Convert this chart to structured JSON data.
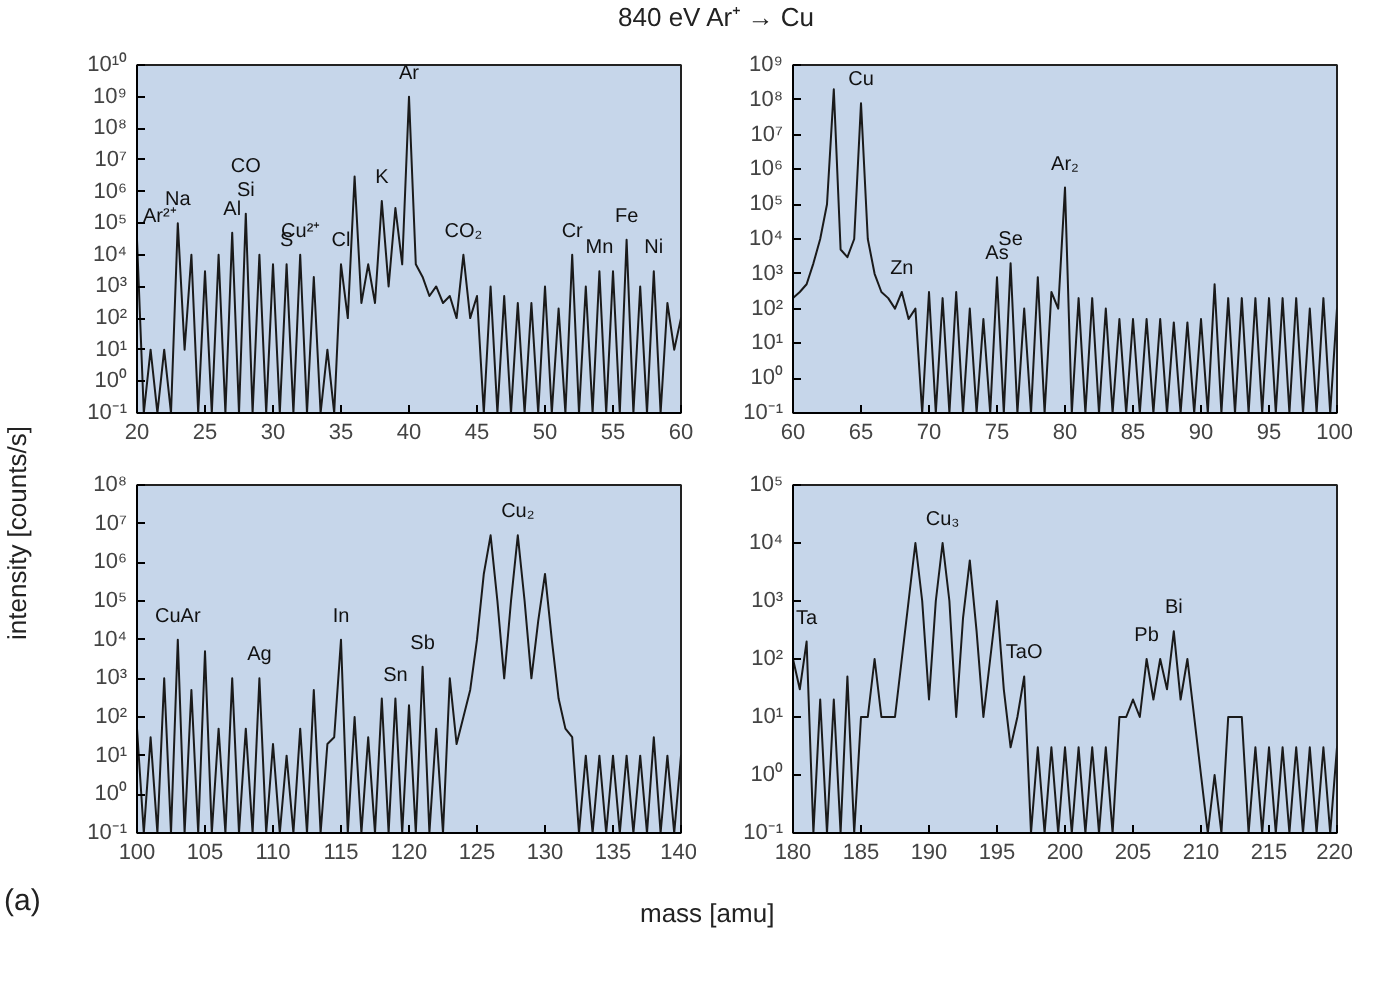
{
  "chart_data": [
    {
      "type": "line",
      "title": "840 eV Ar⁺ → Cu",
      "ylabel": "intensity [counts/s]",
      "color": "#1a1a1a",
      "log": "y",
      "line_style": "solid",
      "xlim": [
        20,
        60
      ],
      "ylim": [
        0.1,
        10000000000.0
      ],
      "xticks": [
        20,
        25,
        30,
        35,
        40,
        45,
        50,
        55,
        60
      ],
      "yticks": [
        {
          "value": 0.1,
          "label": "10⁻¹"
        },
        {
          "value": 1,
          "label": "10⁰"
        },
        {
          "value": 10,
          "label": "10¹"
        },
        {
          "value": 100,
          "label": "10²"
        },
        {
          "value": 1000,
          "label": "10³"
        },
        {
          "value": 10000,
          "label": "10⁴"
        },
        {
          "value": 100000,
          "label": "10⁵"
        },
        {
          "value": 1000000,
          "label": "10⁶"
        },
        {
          "value": 10000000.0,
          "label": "10⁷"
        },
        {
          "value": 100000000.0,
          "label": "10⁸"
        },
        {
          "value": 1000000000.0,
          "label": "10⁹"
        },
        {
          "value": 10000000000.0,
          "label": "10¹⁰"
        }
      ],
      "x": [
        20,
        20.5,
        21,
        21.5,
        22,
        22.5,
        23,
        23.5,
        24,
        24.5,
        25,
        25.5,
        26,
        26.5,
        27,
        27.5,
        28,
        28.5,
        29,
        29.5,
        30,
        30.5,
        31,
        31.5,
        32,
        32.5,
        33,
        33.5,
        34,
        34.5,
        35,
        35.5,
        36,
        36.5,
        37,
        37.5,
        38,
        38.5,
        39,
        39.5,
        40,
        40.5,
        41,
        41.5,
        42,
        42.5,
        43,
        43.5,
        44,
        44.5,
        45,
        45.5,
        46,
        46.5,
        47,
        47.5,
        48,
        48.5,
        49,
        49.5,
        50,
        50.5,
        51,
        51.5,
        52,
        52.5,
        53,
        53.5,
        54,
        54.5,
        55,
        55.5,
        56,
        56.5,
        57,
        57.5,
        58,
        58.5,
        59,
        59.5,
        60
      ],
      "values": [
        30000.0,
        0.1,
        10,
        0.1,
        10,
        0.1,
        100000.0,
        10,
        10000.0,
        0.1,
        3000.0,
        0.1,
        10000.0,
        0.1,
        50000.0,
        0.1,
        200000.0,
        0.1,
        10000.0,
        0.1,
        5000.0,
        0.1,
        5000.0,
        0.1,
        10000.0,
        0.1,
        2000.0,
        0.1,
        10,
        0.1,
        5000.0,
        100,
        3000000.0,
        300,
        5000.0,
        300,
        500000.0,
        1000.0,
        300000.0,
        5000.0,
        1000000000.0,
        5000.0,
        2000.0,
        500,
        1000.0,
        300,
        500,
        100,
        10000.0,
        100,
        500,
        0.1,
        1000.0,
        0.1,
        500,
        0.1,
        300,
        0.1,
        300,
        0.1,
        1000.0,
        0.1,
        200,
        0.1,
        10000.0,
        0.1,
        1000.0,
        0.1,
        3000.0,
        0.1,
        3000.0,
        0.1,
        30000.0,
        0.1,
        1000.0,
        0.1,
        3000.0,
        0.1,
        300,
        10,
        100
      ],
      "annotations": [
        {
          "text": "Ar²⁺",
          "x": 20,
          "y": 30000.0
        },
        {
          "text": "Na",
          "x": 23,
          "y": 100000.0
        },
        {
          "text": "Si",
          "x": 28,
          "y": 200000.0
        },
        {
          "text": "CO",
          "x": 28,
          "y": 200000.0
        },
        {
          "text": "Al",
          "x": 27,
          "y": 50000.0
        },
        {
          "text": "Cu²⁺",
          "x": 32,
          "y": 10000.0
        },
        {
          "text": "S",
          "x": 31,
          "y": 5000.0
        },
        {
          "text": "Cl",
          "x": 35,
          "y": 5000.0
        },
        {
          "text": "K",
          "x": 38,
          "y": 500000.0
        },
        {
          "text": "Ar",
          "x": 40,
          "y": 1000000000.0
        },
        {
          "text": "CO₂",
          "x": 44,
          "y": 10000.0
        },
        {
          "text": "Cr",
          "x": 52,
          "y": 10000.0
        },
        {
          "text": "Mn",
          "x": 54,
          "y": 3000.0
        },
        {
          "text": "Fe",
          "x": 56,
          "y": 30000.0
        },
        {
          "text": "Ni",
          "x": 58,
          "y": 3000.0
        }
      ]
    },
    {
      "type": "line",
      "color": "#1a1a1a",
      "log": "y",
      "line_style": "solid",
      "xlim": [
        60,
        100
      ],
      "ylim": [
        0.1,
        1000000000.0
      ],
      "xticks": [
        60,
        65,
        70,
        75,
        80,
        85,
        90,
        95,
        100
      ],
      "yticks": [
        {
          "value": 0.1,
          "label": "10⁻¹"
        },
        {
          "value": 1,
          "label": "10⁰"
        },
        {
          "value": 10,
          "label": "10¹"
        },
        {
          "value": 100,
          "label": "10²"
        },
        {
          "value": 1000,
          "label": "10³"
        },
        {
          "value": 10000,
          "label": "10⁴"
        },
        {
          "value": 100000,
          "label": "10⁵"
        },
        {
          "value": 1000000,
          "label": "10⁶"
        },
        {
          "value": 10000000.0,
          "label": "10⁷"
        },
        {
          "value": 100000000.0,
          "label": "10⁸"
        },
        {
          "value": 1000000000.0,
          "label": "10⁹"
        }
      ],
      "x": [
        60,
        60.5,
        61,
        61.5,
        62,
        62.5,
        63,
        63.5,
        64,
        64.5,
        65,
        65.5,
        66,
        66.5,
        67,
        67.5,
        68,
        68.5,
        69,
        69.5,
        70,
        70.5,
        71,
        71.5,
        72,
        72.5,
        73,
        73.5,
        74,
        74.5,
        75,
        75.5,
        76,
        76.5,
        77,
        77.5,
        78,
        78.5,
        79,
        79.5,
        80,
        80.5,
        81,
        81.5,
        82,
        82.5,
        83,
        83.5,
        84,
        84.5,
        85,
        85.5,
        86,
        86.5,
        87,
        87.5,
        88,
        88.5,
        89,
        89.5,
        90,
        90.5,
        91,
        91.5,
        92,
        92.5,
        93,
        93.5,
        94,
        94.5,
        95,
        95.5,
        96,
        96.5,
        97,
        97.5,
        98,
        98.5,
        99,
        99.5,
        100
      ],
      "values": [
        200,
        300,
        500,
        2000.0,
        10000.0,
        100000.0,
        200000000.0,
        5000.0,
        3000.0,
        10000.0,
        80000000.0,
        10000.0,
        1000.0,
        300,
        200,
        100,
        300,
        50,
        100,
        0.1,
        300,
        0.1,
        200,
        0.1,
        300,
        0.1,
        100,
        0.1,
        50,
        0.1,
        800,
        0.1,
        2000.0,
        0.1,
        100,
        0.1,
        800,
        0.1,
        300,
        100,
        300000.0,
        0.1,
        200,
        0.1,
        200,
        0.1,
        100,
        0.1,
        50,
        0.1,
        50,
        0.1,
        50,
        0.1,
        50,
        0.1,
        40,
        0.1,
        40,
        0.1,
        50,
        0.1,
        500,
        0.1,
        200,
        0.1,
        200,
        0.1,
        200,
        0.1,
        200,
        0.1,
        200,
        0.1,
        200,
        0.1,
        100,
        0.1,
        200,
        0.1,
        100
      ],
      "annotations": [
        {
          "text": "Cu",
          "x": 65,
          "y": 80000000.0
        },
        {
          "text": "Zn",
          "x": 68,
          "y": 300
        },
        {
          "text": "As",
          "x": 75,
          "y": 800
        },
        {
          "text": "Se",
          "x": 76,
          "y": 2000.0
        },
        {
          "text": "Ar₂",
          "x": 80,
          "y": 300000.0
        }
      ]
    },
    {
      "type": "line",
      "xlabel": "mass [amu]",
      "color": "#1a1a1a",
      "log": "y",
      "line_style": "solid",
      "xlim": [
        100,
        140
      ],
      "ylim": [
        0.1,
        100000000.0
      ],
      "xticks": [
        100,
        105,
        110,
        115,
        120,
        125,
        130,
        135,
        140
      ],
      "yticks": [
        {
          "value": 0.1,
          "label": "10⁻¹"
        },
        {
          "value": 1,
          "label": "10⁰"
        },
        {
          "value": 10,
          "label": "10¹"
        },
        {
          "value": 100,
          "label": "10²"
        },
        {
          "value": 1000,
          "label": "10³"
        },
        {
          "value": 10000,
          "label": "10⁴"
        },
        {
          "value": 100000,
          "label": "10⁵"
        },
        {
          "value": 1000000,
          "label": "10⁶"
        },
        {
          "value": 10000000.0,
          "label": "10⁷"
        },
        {
          "value": 100000000.0,
          "label": "10⁸"
        }
      ],
      "x": [
        100,
        100.5,
        101,
        101.5,
        102,
        102.5,
        103,
        103.5,
        104,
        104.5,
        105,
        105.5,
        106,
        106.5,
        107,
        107.5,
        108,
        108.5,
        109,
        109.5,
        110,
        110.5,
        111,
        111.5,
        112,
        112.5,
        113,
        113.5,
        114,
        114.5,
        115,
        115.5,
        116,
        116.5,
        117,
        117.5,
        118,
        118.5,
        119,
        119.5,
        120,
        120.5,
        121,
        121.5,
        122,
        122.5,
        123,
        123.5,
        124,
        124.5,
        125,
        125.5,
        126,
        126.5,
        127,
        127.5,
        128,
        128.5,
        129,
        129.5,
        130,
        130.5,
        131,
        131.5,
        132,
        132.5,
        133,
        133.5,
        134,
        134.5,
        135,
        135.5,
        136,
        136.5,
        137,
        137.5,
        138,
        138.5,
        139,
        139.5,
        140
      ],
      "values": [
        50,
        0.1,
        30,
        0.1,
        1000.0,
        0.1,
        10000.0,
        0.1,
        500,
        0.1,
        5000.0,
        0.1,
        50,
        0.1,
        1000.0,
        0.1,
        50,
        0.1,
        1000.0,
        0.1,
        20,
        0.1,
        10,
        0.1,
        50,
        0.1,
        500,
        0.1,
        20,
        30,
        10000.0,
        0.1,
        100,
        0.1,
        30,
        0.1,
        300,
        0.1,
        300,
        0.1,
        200,
        0.1,
        2000.0,
        0.1,
        50,
        0.1,
        1000.0,
        20,
        100,
        500,
        10000.0,
        500000.0,
        5000000.0,
        100000.0,
        1000.0,
        100000.0,
        5000000.0,
        100000.0,
        1000.0,
        30000.0,
        500000.0,
        10000.0,
        300,
        50,
        30,
        0.1,
        10,
        0.1,
        10,
        0.1,
        10,
        0.1,
        10,
        0.1,
        10,
        0.1,
        30,
        0.1,
        10,
        0.1,
        10
      ],
      "annotations": [
        "(a)",
        {
          "text": "CuAr",
          "x": 103,
          "y": 10000.0
        },
        {
          "text": "Ag",
          "x": 109,
          "y": 1000.0
        },
        {
          "text": "In",
          "x": 115,
          "y": 10000.0
        },
        {
          "text": "Sn",
          "x": 119,
          "y": 300
        },
        {
          "text": "Sb",
          "x": 121,
          "y": 2000.0
        },
        {
          "text": "Cu₂",
          "x": 128,
          "y": 5000000.0
        }
      ]
    },
    {
      "type": "line",
      "color": "#1a1a1a",
      "log": "y",
      "line_style": "solid",
      "xlim": [
        180,
        220
      ],
      "ylim": [
        0.1,
        100000.0
      ],
      "xticks": [
        180,
        185,
        190,
        195,
        200,
        205,
        210,
        215,
        220
      ],
      "yticks": [
        {
          "value": 0.1,
          "label": "10⁻¹"
        },
        {
          "value": 1,
          "label": "10⁰"
        },
        {
          "value": 10,
          "label": "10¹"
        },
        {
          "value": 100,
          "label": "10²"
        },
        {
          "value": 1000,
          "label": "10³"
        },
        {
          "value": 10000,
          "label": "10⁴"
        },
        {
          "value": 100000,
          "label": "10⁵"
        }
      ],
      "x": [
        180,
        180.5,
        181,
        181.5,
        182,
        182.5,
        183,
        183.5,
        184,
        184.5,
        185,
        185.5,
        186,
        186.5,
        187,
        187.5,
        188,
        188.5,
        189,
        189.5,
        190,
        190.5,
        191,
        191.5,
        192,
        192.5,
        193,
        193.5,
        194,
        194.5,
        195,
        195.5,
        196,
        196.5,
        197,
        197.5,
        198,
        198.5,
        199,
        199.5,
        200,
        200.5,
        201,
        201.5,
        202,
        202.5,
        203,
        203.5,
        204,
        204.5,
        205,
        205.5,
        206,
        206.5,
        207,
        207.5,
        208,
        208.5,
        209,
        209.5,
        210,
        210.5,
        211,
        211.5,
        212,
        212.5,
        213,
        213.5,
        214,
        214.5,
        215,
        215.5,
        216,
        216.5,
        217,
        217.5,
        218,
        218.5,
        219,
        219.5,
        220
      ],
      "values": [
        100,
        30,
        200,
        0.1,
        20,
        0.1,
        20,
        0.1,
        50,
        0.1,
        10,
        10,
        100,
        10,
        10,
        10,
        100,
        1000.0,
        10000.0,
        1000.0,
        20,
        1000.0,
        10000.0,
        1000.0,
        10,
        500,
        5000.0,
        300,
        10,
        100,
        1000.0,
        30,
        3,
        10,
        50,
        0.1,
        3,
        0.1,
        3,
        0.1,
        3,
        0.1,
        3,
        0.1,
        3,
        0.1,
        3,
        0.1,
        10,
        10,
        20,
        10,
        100,
        20,
        100,
        30,
        300,
        20,
        100,
        10,
        1,
        0.1,
        1,
        0.1,
        10,
        10,
        10,
        0.1,
        3,
        0.1,
        3,
        0.1,
        3,
        0.1,
        3,
        0.1,
        3,
        0.1,
        3,
        0.1,
        3
      ],
      "annotations": [
        {
          "text": "Ta",
          "x": 181,
          "y": 200
        },
        {
          "text": "Cu₃",
          "x": 191,
          "y": 10000.0
        },
        {
          "text": "TaO",
          "x": 197,
          "y": 50
        },
        {
          "text": "Pb",
          "x": 206,
          "y": 100
        },
        {
          "text": "Bi",
          "x": 208,
          "y": 300
        }
      ]
    }
  ]
}
